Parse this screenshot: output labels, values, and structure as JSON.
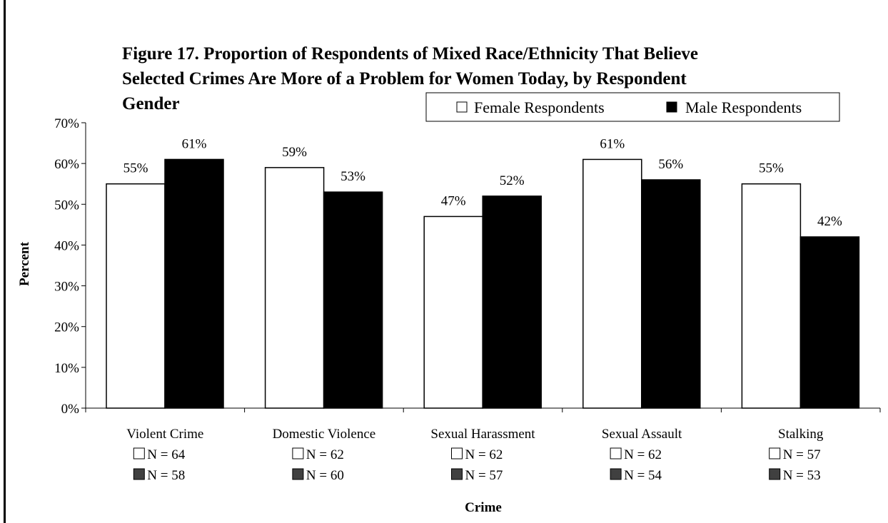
{
  "chart_data": {
    "type": "bar",
    "title_lines": [
      "Figure 17.  Proportion of Respondents of Mixed Race/Ethnicity That Believe",
      "Selected Crimes Are More of a Problem for Women Today, by Respondent",
      "Gender"
    ],
    "xlabel": "Crime",
    "ylabel": "Percent",
    "ylim": [
      0,
      70
    ],
    "y_ticks": [
      0,
      10,
      20,
      30,
      40,
      50,
      60,
      70
    ],
    "y_tick_labels": [
      "0%",
      "10%",
      "20%",
      "30%",
      "40%",
      "50%",
      "60%",
      "70%"
    ],
    "categories": [
      "Violent Crime",
      "Domestic Violence",
      "Sexual Harassment",
      "Sexual Assault",
      "Stalking"
    ],
    "series": [
      {
        "name": "Female Respondents",
        "color": "#ffffff",
        "values": [
          55,
          59,
          47,
          61,
          55
        ],
        "value_labels": [
          "55%",
          "59%",
          "47%",
          "61%",
          "55%"
        ],
        "n_labels": [
          "N = 64",
          "N = 62",
          "N = 62",
          "N = 62",
          "N = 57"
        ]
      },
      {
        "name": "Male Respondents",
        "color": "#000000",
        "values": [
          61,
          53,
          52,
          56,
          42
        ],
        "value_labels": [
          "61%",
          "53%",
          "52%",
          "56%",
          "42%"
        ],
        "n_labels": [
          "N = 58",
          "N = 60",
          "N = 57",
          "N = 54",
          "N = 53"
        ]
      }
    ],
    "n_marker_colors": [
      "#ffffff",
      "#404040"
    ],
    "legend_position": "top-right",
    "grid": false
  }
}
